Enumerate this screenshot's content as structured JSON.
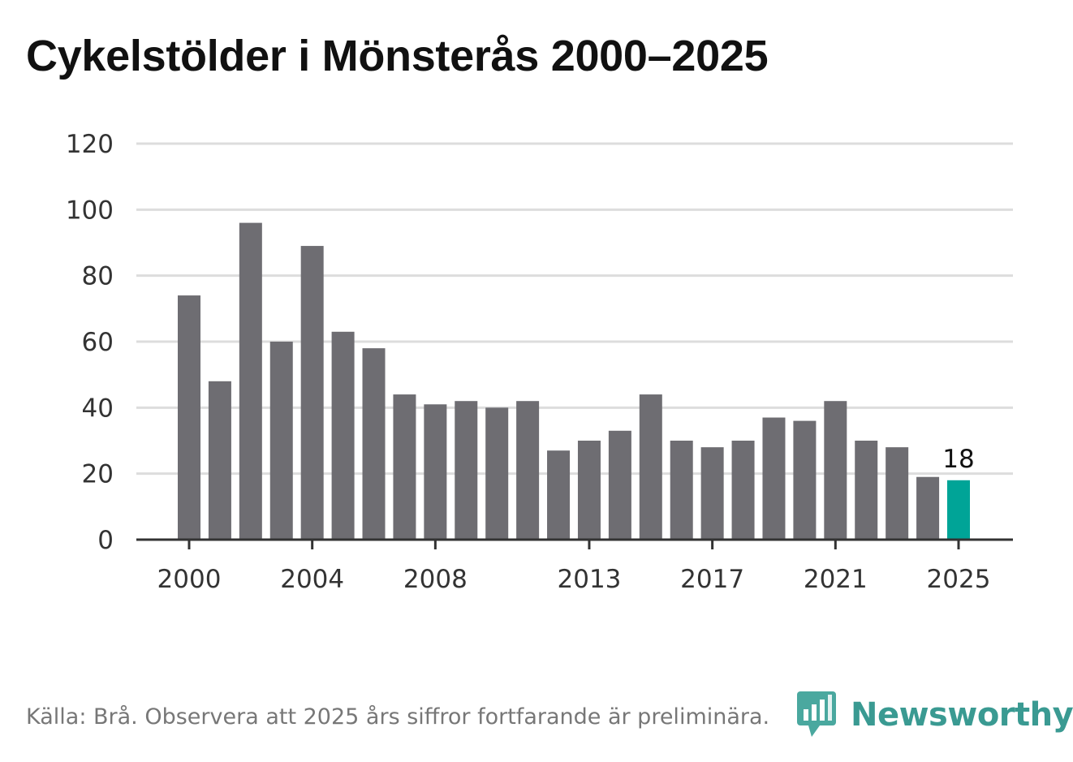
{
  "title": "Cykelstölder i Mönsterås 2000–2025",
  "footer": {
    "source": "Källa: Brå. Observera att 2025 års siffror fortfarande är preliminära."
  },
  "logo": {
    "text": "Newsworthy",
    "icon": "newsworthy-logo-icon"
  },
  "colors": {
    "bar": "#6e6d72",
    "highlight": "#00a497",
    "grid": "#dddddd",
    "axis": "#333333"
  },
  "chart_data": {
    "type": "bar",
    "title": "Cykelstölder i Mönsterås 2000–2025",
    "categories": [
      "2000",
      "2001",
      "2002",
      "2003",
      "2004",
      "2005",
      "2006",
      "2007",
      "2008",
      "2009",
      "2010",
      "2011",
      "2012",
      "2013",
      "2014",
      "2015",
      "2016",
      "2017",
      "2018",
      "2019",
      "2020",
      "2021",
      "2022",
      "2023",
      "2024",
      "2025"
    ],
    "values": [
      74,
      48,
      96,
      60,
      89,
      63,
      58,
      44,
      41,
      42,
      40,
      42,
      27,
      30,
      33,
      44,
      30,
      28,
      30,
      37,
      36,
      42,
      30,
      28,
      19,
      18
    ],
    "highlight_index": 25,
    "highlight_label": "18",
    "xlabel": "",
    "ylabel": "",
    "ylim": [
      0,
      120
    ],
    "yticks": [
      "0",
      "20",
      "40",
      "60",
      "80",
      "100",
      "120"
    ],
    "xticks": [
      "2000",
      "2004",
      "2008",
      "2013",
      "2017",
      "2021",
      "2025"
    ],
    "grid": true
  }
}
